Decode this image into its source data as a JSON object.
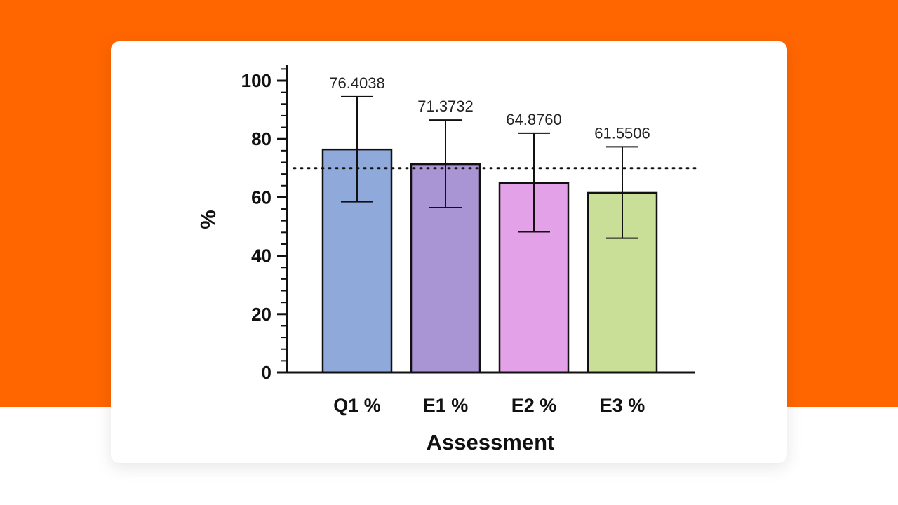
{
  "colors": {
    "banner": "#FF6600",
    "card": "#FFFFFF",
    "axis": "#111111",
    "bar_stroke": "#111111"
  },
  "chart_data": {
    "type": "bar",
    "categories": [
      "Q1 %",
      "E1 %",
      "E2 %",
      "E3 %"
    ],
    "values": [
      76.4038,
      71.3732,
      64.876,
      61.5506
    ],
    "data_labels": [
      "76.4038",
      "71.3732",
      "64.8760",
      "61.5506"
    ],
    "error_low": [
      58.5,
      56.5,
      48.2,
      46.0
    ],
    "error_high": [
      94.5,
      86.5,
      82.0,
      77.3
    ],
    "bar_colors": [
      "#8FA9DA",
      "#A994D4",
      "#E3A1E7",
      "#C9DF97"
    ],
    "reference_line": {
      "value": 70,
      "style": "dotted"
    },
    "xlabel": "Assessment",
    "ylabel": "%",
    "ylim": [
      0,
      100
    ],
    "yticks": [
      0,
      20,
      40,
      60,
      80,
      100
    ],
    "ytick_labels": [
      "0",
      "20",
      "40",
      "60",
      "80",
      "100"
    ],
    "minor_ticks_per_major": 4,
    "grid": false,
    "legend": "none"
  }
}
